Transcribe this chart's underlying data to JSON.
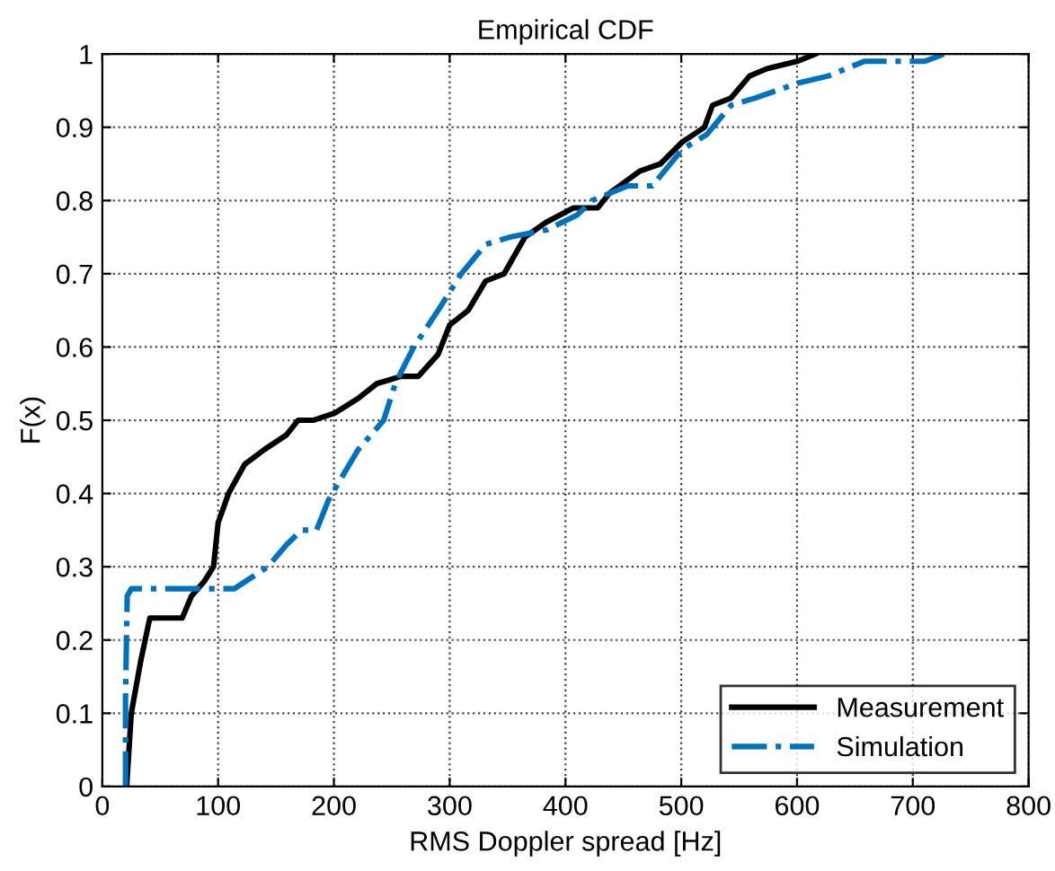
{
  "chart_data": {
    "type": "line",
    "title": "Empirical CDF",
    "xlabel": "RMS Doppler spread [Hz]",
    "ylabel": "F(x)",
    "xlim": [
      0,
      800
    ],
    "ylim": [
      0,
      1
    ],
    "xticks": [
      0,
      100,
      200,
      300,
      400,
      500,
      600,
      700,
      800
    ],
    "yticks": [
      0,
      0.1,
      0.2,
      0.3,
      0.4,
      0.5,
      0.6,
      0.7,
      0.8,
      0.9,
      1
    ],
    "grid": true,
    "legend": "bottom right",
    "series": [
      {
        "name": "Measurement",
        "color": "#000000",
        "line_style": "solid",
        "x": [
          21,
          25,
          33,
          41,
          69,
          77,
          88,
          96,
          100,
          109,
          123,
          140,
          159,
          169,
          182,
          201,
          221,
          237,
          258,
          273,
          290,
          300,
          316,
          331,
          347,
          365,
          383,
          407,
          428,
          438,
          464,
          482,
          501,
          520,
          527,
          543,
          559,
          574,
          600,
          616
        ],
        "values": [
          0,
          0.1,
          0.17,
          0.23,
          0.23,
          0.26,
          0.28,
          0.3,
          0.36,
          0.4,
          0.44,
          0.46,
          0.48,
          0.5,
          0.5,
          0.51,
          0.53,
          0.55,
          0.56,
          0.56,
          0.59,
          0.63,
          0.65,
          0.69,
          0.7,
          0.75,
          0.77,
          0.79,
          0.79,
          0.81,
          0.84,
          0.85,
          0.88,
          0.9,
          0.93,
          0.94,
          0.97,
          0.98,
          0.99,
          1
        ]
      },
      {
        "name": "Simulation",
        "color": "#0072bd",
        "line_style": "dashdot",
        "x": [
          20,
          20,
          21.5,
          25,
          91,
          114,
          143,
          159,
          172,
          185,
          195,
          206,
          221,
          243,
          253,
          269,
          290,
          310,
          331,
          352,
          384,
          410,
          423,
          454,
          475,
          501,
          522,
          543,
          564,
          600,
          627,
          658,
          710,
          727
        ],
        "values": [
          0,
          0.12,
          0.26,
          0.27,
          0.27,
          0.27,
          0.3,
          0.33,
          0.35,
          0.35,
          0.39,
          0.42,
          0.46,
          0.5,
          0.55,
          0.6,
          0.65,
          0.7,
          0.74,
          0.75,
          0.76,
          0.78,
          0.8,
          0.82,
          0.82,
          0.87,
          0.89,
          0.93,
          0.94,
          0.96,
          0.97,
          0.99,
          0.99,
          1
        ]
      }
    ]
  }
}
